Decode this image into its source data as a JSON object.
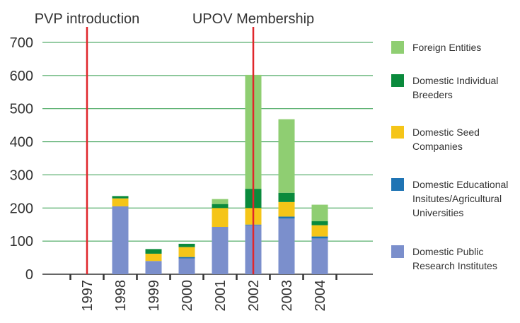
{
  "chart_data": {
    "type": "stacked_bar",
    "categories": [
      "1997",
      "1998",
      "1999",
      "2000",
      "2001",
      "2002",
      "2003",
      "2004"
    ],
    "series": [
      {
        "name": "Domestic Public Research Institutes",
        "color": "#7b8fcc",
        "values": [
          0,
          205,
          40,
          48,
          143,
          148,
          168,
          108
        ]
      },
      {
        "name": "Domestic Educational Insitutes/Agricultural Universities",
        "color": "#1f74b4",
        "values": [
          0,
          0,
          0,
          4,
          0,
          2,
          6,
          6
        ]
      },
      {
        "name": "Domestic Seed Companies",
        "color": "#f5c518",
        "values": [
          0,
          24,
          22,
          30,
          57,
          50,
          44,
          34
        ]
      },
      {
        "name": "Domestic Individual Breeders",
        "color": "#0a8a3c",
        "values": [
          0,
          7,
          14,
          10,
          12,
          58,
          28,
          12
        ]
      },
      {
        "name": "Foreign Entities",
        "color": "#8fce72",
        "values": [
          0,
          0,
          0,
          0,
          15,
          344,
          222,
          50
        ]
      }
    ],
    "ylim": [
      0,
      700
    ],
    "yticks": [
      0,
      100,
      200,
      300,
      400,
      500,
      600,
      700
    ],
    "grid": true,
    "annotations": [
      {
        "label": "PVP introduction",
        "x": "1997"
      },
      {
        "label": "UPOV Membership",
        "x": "2002"
      }
    ]
  }
}
